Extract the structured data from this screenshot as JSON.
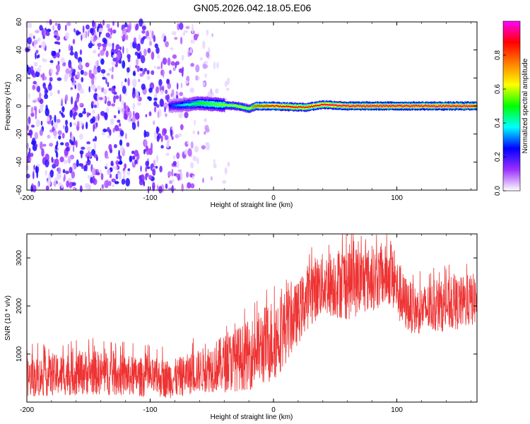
{
  "figure_title": "GN05.2026.042.18.05.E06",
  "chart_data": [
    {
      "type": "heatmap",
      "title": "GN05.2026.042.18.05.E06",
      "xlabel": "Height of straight line (km)",
      "ylabel": "Frequency (Hz)",
      "xlim": [
        -200,
        165
      ],
      "ylim": [
        -60,
        60
      ],
      "xticks": [
        -200,
        -100,
        0,
        100
      ],
      "yticks": [
        -60,
        -40,
        -20,
        0,
        20,
        40,
        60
      ],
      "colorbar": {
        "label": "Normalized spectral amplitude",
        "range": [
          0,
          1
        ],
        "ticks": [
          "0.0",
          "0.2",
          "0.4",
          "0.6",
          "0.8"
        ],
        "colormap": [
          "#ffffff",
          "#9b30ff",
          "#0000ff",
          "#00ffff",
          "#00ff00",
          "#ffff00",
          "#ff8000",
          "#ff0000",
          "#ff00ff"
        ]
      },
      "description_points": {
        "noise_region_x": [
          -200,
          -80
        ],
        "signal_track": [
          {
            "x": -85,
            "freq": 0,
            "amp": 0.25
          },
          {
            "x": -70,
            "freq": 1,
            "amp": 0.4
          },
          {
            "x": -60,
            "freq": 2,
            "amp": 0.5
          },
          {
            "x": -45,
            "freq": 1,
            "amp": 0.55
          },
          {
            "x": -30,
            "freq": 0,
            "amp": 0.6
          },
          {
            "x": -20,
            "freq": -2,
            "amp": 0.6
          },
          {
            "x": -15,
            "freq": 0,
            "amp": 0.8
          },
          {
            "x": 0,
            "freq": 0,
            "amp": 0.9
          },
          {
            "x": 25,
            "freq": -1,
            "amp": 0.85
          },
          {
            "x": 40,
            "freq": 1,
            "amp": 0.9
          },
          {
            "x": 60,
            "freq": 0,
            "amp": 0.95
          },
          {
            "x": 100,
            "freq": 0,
            "amp": 0.95
          },
          {
            "x": 165,
            "freq": 0,
            "amp": 0.95
          }
        ]
      },
      "grid": false
    },
    {
      "type": "line",
      "xlabel": "Height of straight line (km)",
      "ylabel": "SNR (10 * v/v)",
      "xlim": [
        -200,
        165
      ],
      "ylim": [
        0,
        3500
      ],
      "xticks": [
        -200,
        -100,
        0,
        100
      ],
      "yticks": [
        1000,
        2000,
        3000
      ],
      "grid": false,
      "series": [
        {
          "color": "#ee3333",
          "envelope": {
            "x": [
              -200,
              -150,
              -100,
              -80,
              -60,
              -40,
              -20,
              0,
              20,
              30,
              40,
              60,
              80,
              95,
              105,
              115,
              130,
              150,
              165
            ],
            "low": [
              100,
              150,
              100,
              80,
              200,
              200,
              250,
              400,
              1200,
              1600,
              1800,
              1700,
              1900,
              2000,
              1500,
              1400,
              1450,
              1500,
              1600
            ],
            "high": [
              900,
              1100,
              900,
              900,
              1100,
              1400,
              1700,
              2200,
              2500,
              3000,
              3100,
              3300,
              3200,
              3300,
              2700,
              2400,
              2500,
              2600,
              2700
            ]
          }
        }
      ]
    }
  ]
}
